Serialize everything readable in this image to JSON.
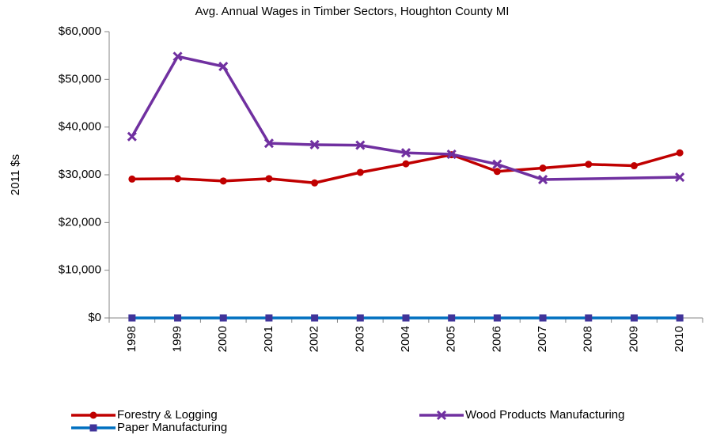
{
  "chart_data": {
    "type": "line",
    "title": "Avg. Annual Wages in Timber Sectors, Houghton County MI",
    "y_label": "2011 $s",
    "categories": [
      "1998",
      "1999",
      "2000",
      "2001",
      "2002",
      "2003",
      "2004",
      "2005",
      "2006",
      "2007",
      "2008",
      "2009",
      "2010"
    ],
    "series": [
      {
        "name": "Forestry & Logging",
        "color": "#c00000",
        "marker": "circle",
        "values": [
          29100,
          29200,
          28700,
          29200,
          28300,
          30500,
          32300,
          34200,
          30700,
          31400,
          32200,
          31900,
          34600
        ]
      },
      {
        "name": "Wood Products Manufacturing",
        "color": "#7030a0",
        "marker": "x",
        "values": [
          38000,
          54800,
          52700,
          36600,
          36300,
          36200,
          34600,
          34300,
          32200,
          29000,
          null,
          null,
          29500
        ]
      },
      {
        "name": "Paper Manufacturing",
        "color": "#0070c0",
        "marker": "square",
        "marker_color": "#403399",
        "values": [
          0,
          0,
          0,
          0,
          0,
          0,
          0,
          0,
          0,
          0,
          0,
          0,
          0
        ]
      }
    ],
    "connect_gaps": true,
    "ylim": [
      0,
      60000
    ],
    "yticks": [
      {
        "value": 0,
        "label": "$0"
      },
      {
        "value": 10000,
        "label": "$10,000"
      },
      {
        "value": 20000,
        "label": "$20,000"
      },
      {
        "value": 30000,
        "label": "$30,000"
      },
      {
        "value": 40000,
        "label": "$40,000"
      },
      {
        "value": 50000,
        "label": "$50,000"
      },
      {
        "value": 60000,
        "label": "$60,000"
      }
    ],
    "grid": false,
    "legend": "bottom"
  }
}
